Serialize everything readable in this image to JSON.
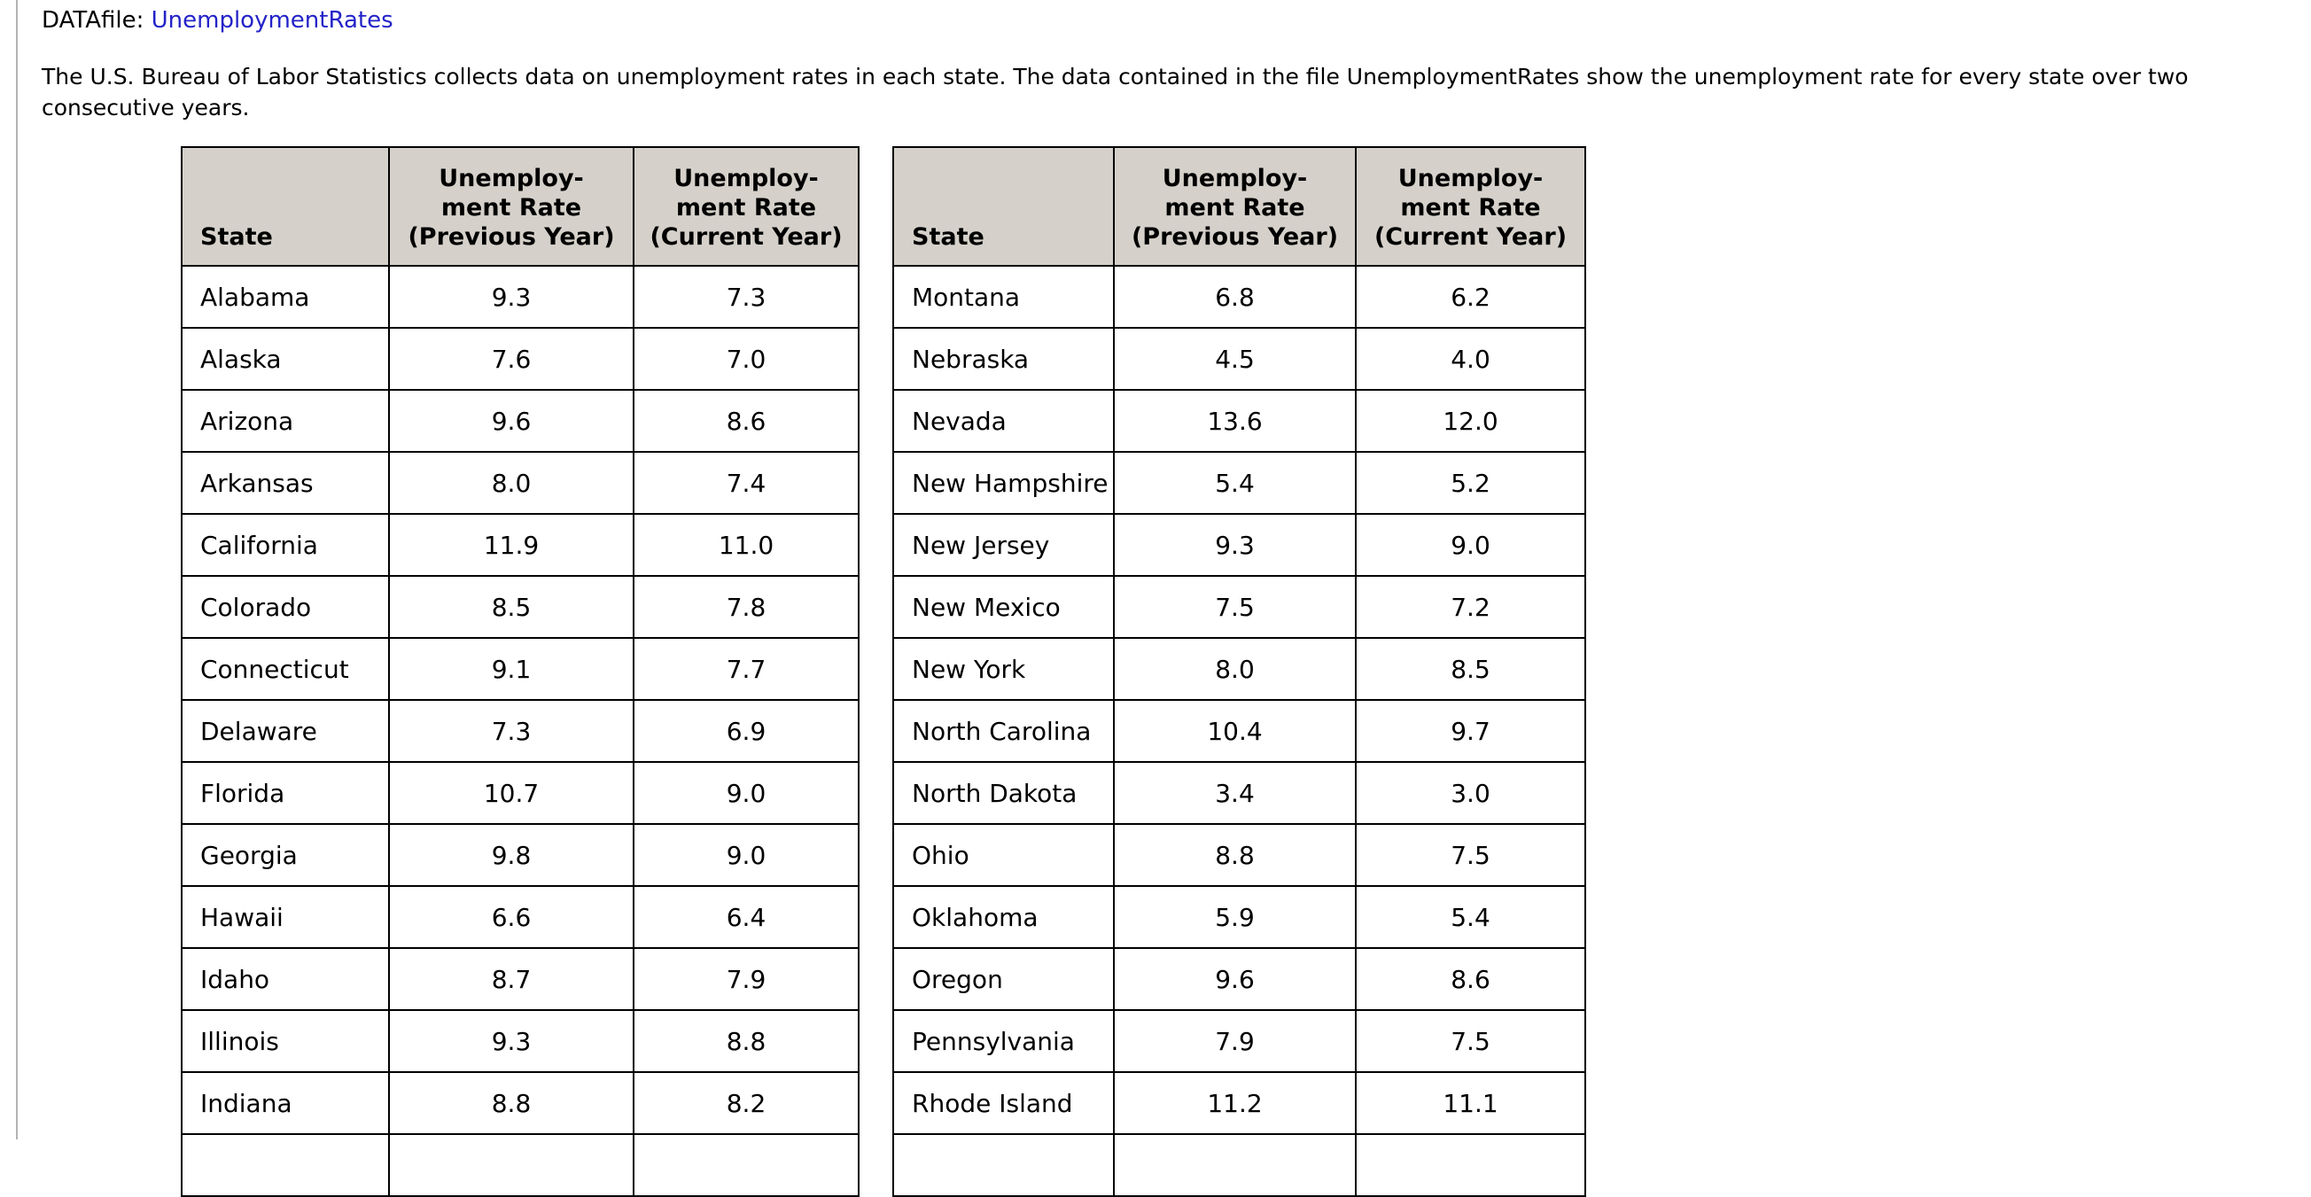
{
  "title": {
    "label": "DATAfile:",
    "link": "UnemploymentRates"
  },
  "paragraph": "The U.S. Bureau of Labor Statistics collects data on unemployment rates in each state. The data contained in the file UnemploymentRates show the unemployment rate for every state over two\nconsecutive years.",
  "headers": {
    "state": "State",
    "previous": "Unemploy-\nment Rate\n(Previous Year)",
    "current": "Unemploy-\nment Rate\n(Current Year)"
  },
  "tables": {
    "left": {
      "rows": [
        [
          "Alabama",
          "9.3",
          "7.3"
        ],
        [
          "Alaska",
          "7.6",
          "7.0"
        ],
        [
          "Arizona",
          "9.6",
          "8.6"
        ],
        [
          "Arkansas",
          "8.0",
          "7.4"
        ],
        [
          "California",
          "11.9",
          "11.0"
        ],
        [
          "Colorado",
          "8.5",
          "7.8"
        ],
        [
          "Connecticut",
          "9.1",
          "7.7"
        ],
        [
          "Delaware",
          "7.3",
          "6.9"
        ],
        [
          "Florida",
          "10.7",
          "9.0"
        ],
        [
          "Georgia",
          "9.8",
          "9.0"
        ],
        [
          "Hawaii",
          "6.6",
          "6.4"
        ],
        [
          "Idaho",
          "8.7",
          "7.9"
        ],
        [
          "Illinois",
          "9.3",
          "8.8"
        ],
        [
          "Indiana",
          "8.8",
          "8.2"
        ]
      ]
    },
    "right": {
      "rows": [
        [
          "Montana",
          "6.8",
          "6.2"
        ],
        [
          "Nebraska",
          "4.5",
          "4.0"
        ],
        [
          "Nevada",
          "13.6",
          "12.0"
        ],
        [
          "New Hampshire",
          "5.4",
          "5.2"
        ],
        [
          "New Jersey",
          "9.3",
          "9.0"
        ],
        [
          "New Mexico",
          "7.5",
          "7.2"
        ],
        [
          "New York",
          "8.0",
          "8.5"
        ],
        [
          "North Carolina",
          "10.4",
          "9.7"
        ],
        [
          "North Dakota",
          "3.4",
          "3.0"
        ],
        [
          "Ohio",
          "8.8",
          "7.5"
        ],
        [
          "Oklahoma",
          "5.9",
          "5.4"
        ],
        [
          "Oregon",
          "9.6",
          "8.6"
        ],
        [
          "Pennsylvania",
          "7.9",
          "7.5"
        ],
        [
          "Rhode Island",
          "11.2",
          "11.1"
        ]
      ]
    }
  },
  "colors": {
    "link_blue": "#2323c8",
    "header_background": "#d5d1ca",
    "table_border": "#000000",
    "left_rule_gray": "#b3b3b3"
  }
}
